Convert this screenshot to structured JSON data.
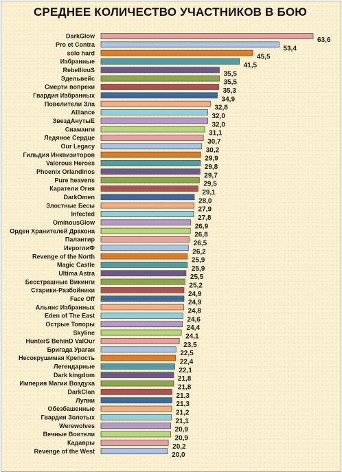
{
  "chart_data": {
    "type": "bar",
    "orientation": "horizontal",
    "title": "СРЕДНЕЕ КОЛИЧЕСТВО УЧАСТНИКОВ В БОЮ",
    "xlabel": "",
    "ylabel": "",
    "xlim": [
      0,
      63.6
    ],
    "grid": false,
    "legend": "none",
    "categories": [
      "DarkGlow",
      "Pro et Contra",
      "solo hard",
      "Избранные",
      "RebelliouS",
      "Эдельвейс",
      "Смерти вопреки",
      "Гвардия Избранных",
      "Повелители Зла",
      "Alliance",
      "ЗвездАнутыЕ",
      "Сиаманги",
      "Ледяное Сердце",
      "Our Legacy",
      "Гильдия Инквизиторов",
      "Valorous Heroes",
      "Phoenix Orlandinos",
      "Pure heavens",
      "Каратели Огня",
      "DarkOmen",
      "Злостные Бесы",
      "Infected",
      "OminousGlow",
      "Орден Хранителей Дракона",
      "Палантир",
      "ИероглиФ",
      "Revenge of the North",
      "Magic Castle",
      "Ultima Astra",
      "Бесстрашные Викинги",
      "Старики-Разбойники",
      "Face Off",
      "Альянс Избранных",
      "Eden of The East",
      "Острые Топоры",
      "Skyline",
      "HunterS BehinD ValOur",
      "Бригада Ураган",
      "Несокрушимая Крепость",
      "Легендарные",
      "Dark kingdom",
      "Империя Магии Воздуха",
      "DarkClan",
      "Лупни",
      "Обезбашенные",
      "Гвардия Золотых",
      "Werewolves",
      "Вечные Воители",
      "Кадавры",
      "Revenge of the West"
    ],
    "values": [
      63.6,
      53.4,
      45.5,
      41.5,
      35.5,
      35.5,
      35.3,
      34.9,
      32.8,
      32.0,
      32.0,
      31.1,
      30.7,
      30.2,
      29.9,
      29.8,
      29.7,
      29.5,
      29.1,
      28.0,
      27.9,
      27.8,
      26.9,
      26.8,
      26.5,
      26.2,
      25.9,
      25.9,
      25.5,
      25.2,
      24.9,
      24.9,
      24.8,
      24.6,
      24.4,
      24.1,
      23.5,
      22.5,
      22.4,
      22.1,
      21.8,
      21.8,
      21.3,
      21.3,
      21.2,
      21.1,
      20.9,
      20.9,
      20.2,
      20.0
    ],
    "value_labels": [
      "63,6",
      "53,4",
      "45,5",
      "41,5",
      "35,5",
      "35,5",
      "35,3",
      "34,9",
      "32,8",
      "32,0",
      "32,0",
      "31,1",
      "30,7",
      "30,2",
      "29,9",
      "29,8",
      "29,7",
      "29,5",
      "29,1",
      "28,0",
      "27,9",
      "27,8",
      "26,9",
      "26,8",
      "26,5",
      "26,2",
      "25,9",
      "25,9",
      "25,5",
      "25,2",
      "24,9",
      "24,9",
      "24,8",
      "24,6",
      "24,4",
      "24,1",
      "23,5",
      "22,5",
      "22,4",
      "22,1",
      "21,8",
      "21,8",
      "21,3",
      "21,3",
      "21,2",
      "21,1",
      "20,9",
      "20,9",
      "20,2",
      "20,0"
    ],
    "palette": [
      "#e8a0a0",
      "#a9c4e8",
      "#e37b25",
      "#4f9ea5",
      "#6a5a8c",
      "#8aa84c",
      "#b05050",
      "#3c6aa0",
      "#f4b084",
      "#8fd0de",
      "#b39acc",
      "#b6d77a"
    ],
    "bar_border": "#555555"
  }
}
